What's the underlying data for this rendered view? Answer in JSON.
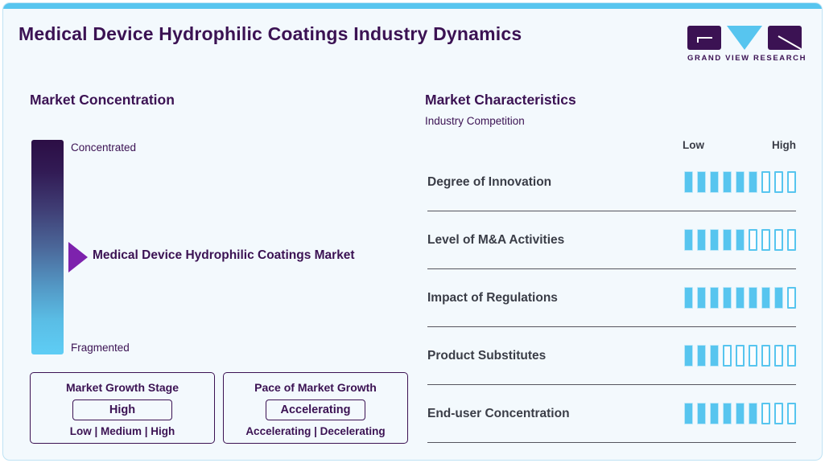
{
  "page": {
    "title": "Medical Device Hydrophilic Coatings Industry Dynamics"
  },
  "brand": {
    "name": "GRAND VIEW RESEARCH"
  },
  "market_concentration": {
    "heading": "Market Concentration",
    "scale_top": "Concentrated",
    "scale_bottom": "Fragmented",
    "marker_label": "Medical Device Hydrophilic Coatings Market",
    "growth_stage": {
      "title": "Market Growth Stage",
      "value": "High",
      "options": "Low | Medium | High"
    },
    "growth_pace": {
      "title": "Pace of Market Growth",
      "value": "Accelerating",
      "options": "Accelerating | Decelerating"
    }
  },
  "market_characteristics": {
    "heading": "Market Characteristics",
    "subtitle": "Industry Competition",
    "scale_low": "Low",
    "scale_high": "High",
    "total_segments": 9,
    "rows": [
      {
        "label": "Degree of Innovation",
        "filled": 6
      },
      {
        "label": "Level of M&A Activities",
        "filled": 5
      },
      {
        "label": "Impact of Regulations",
        "filled": 8
      },
      {
        "label": "Product Substitutes",
        "filled": 3
      },
      {
        "label": "End-user Concentration",
        "filled": 6
      }
    ]
  },
  "chart_data": {
    "type": "bar",
    "title": "Market Characteristics - Industry Competition",
    "categories": [
      "Degree of Innovation",
      "Level of M&A Activities",
      "Impact of Regulations",
      "Product Substitutes",
      "End-user Concentration"
    ],
    "values": [
      6,
      5,
      8,
      3,
      6
    ],
    "value_range": [
      0,
      9
    ],
    "xlabel": "",
    "ylabel": "",
    "scale_labels": [
      "Low",
      "High"
    ],
    "legend": "off",
    "orientation": "horizontal segmented rating bars, 9 segments each"
  },
  "colors": {
    "purple_dark": "#3b1253",
    "purple_accent": "#7d22ad",
    "sky_blue": "#57c5ef",
    "charcoal": "#3a3d47",
    "card_background": "#f3f9fd"
  }
}
